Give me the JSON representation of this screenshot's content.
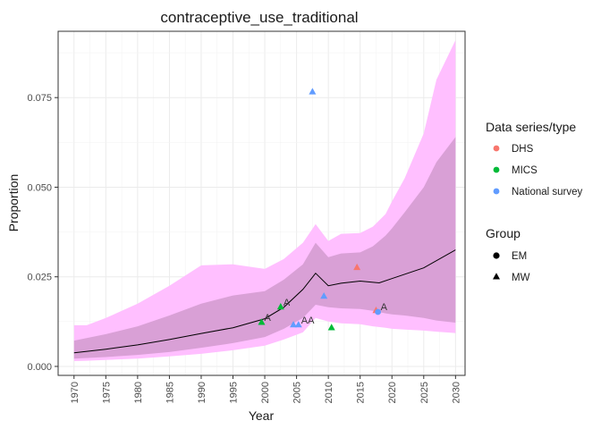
{
  "chart_data": {
    "type": "line",
    "title": "contraceptive_use_traditional",
    "xlabel": "Year",
    "ylabel": "Proportion",
    "xlim": [
      1967.5,
      2031.5
    ],
    "ylim": [
      -0.0025,
      0.0935
    ],
    "x_ticks": [
      1970,
      1975,
      1980,
      1985,
      1990,
      1995,
      2000,
      2005,
      2010,
      2015,
      2020,
      2025,
      2030
    ],
    "x_tick_labels": [
      "1970",
      "1975",
      "1980",
      "1985",
      "1990",
      "1995",
      "2000",
      "2005",
      "2010",
      "2015",
      "2020",
      "2025",
      "2030"
    ],
    "y_ticks": [
      0.0,
      0.025,
      0.05,
      0.075
    ],
    "y_tick_labels": [
      "0.000",
      "0.025",
      "0.050",
      "0.075"
    ],
    "grid": true,
    "legend_position": "right",
    "colors": {
      "outer_band": "#ffbfff",
      "inner_band": "#d9a0d6",
      "median_line": "#000000",
      "DHS": "#f8766d",
      "MICS": "#00ba38",
      "National survey": "#619cff"
    },
    "median": {
      "x": [
        1970,
        1975,
        1980,
        1985,
        1990,
        1995,
        2000,
        2003,
        2006,
        2008,
        2010,
        2012,
        2015,
        2018,
        2020,
        2025,
        2030
      ],
      "y": [
        0.0038,
        0.0048,
        0.006,
        0.0075,
        0.0092,
        0.0108,
        0.0133,
        0.0165,
        0.0215,
        0.026,
        0.0225,
        0.0232,
        0.0238,
        0.0233,
        0.0245,
        0.0275,
        0.0325
      ]
    },
    "outer_band": {
      "x": [
        1970,
        1972,
        1975,
        1980,
        1985,
        1990,
        1995,
        2000,
        2003,
        2006,
        2008,
        2010,
        2012,
        2015,
        2017,
        2019,
        2020,
        2022,
        2025,
        2027,
        2030
      ],
      "upper": [
        0.0115,
        0.0115,
        0.0135,
        0.0175,
        0.0225,
        0.0282,
        0.0285,
        0.0272,
        0.03,
        0.0345,
        0.0397,
        0.035,
        0.037,
        0.0372,
        0.039,
        0.0425,
        0.046,
        0.0525,
        0.065,
        0.08,
        0.091
      ],
      "lower": [
        0.0015,
        0.0016,
        0.0018,
        0.0022,
        0.0028,
        0.0035,
        0.0045,
        0.0058,
        0.0075,
        0.0095,
        0.0135,
        0.0125,
        0.012,
        0.0118,
        0.0112,
        0.0108,
        0.0105,
        0.0103,
        0.01,
        0.0097,
        0.0093
      ]
    },
    "inner_band": {
      "x": [
        1970,
        1975,
        1980,
        1985,
        1990,
        1995,
        2000,
        2003,
        2006,
        2008,
        2010,
        2012,
        2015,
        2017,
        2019,
        2020,
        2022,
        2025,
        2027,
        2030
      ],
      "upper": [
        0.0072,
        0.009,
        0.0112,
        0.0142,
        0.0175,
        0.0198,
        0.021,
        0.0242,
        0.0285,
        0.0345,
        0.0305,
        0.0315,
        0.0318,
        0.0335,
        0.0365,
        0.0385,
        0.043,
        0.05,
        0.057,
        0.064
      ],
      "lower": [
        0.0022,
        0.0026,
        0.0032,
        0.004,
        0.0052,
        0.0065,
        0.0082,
        0.0105,
        0.0135,
        0.0172,
        0.0165,
        0.0162,
        0.016,
        0.0155,
        0.0148,
        0.0145,
        0.0142,
        0.0135,
        0.0128,
        0.0122
      ]
    },
    "points": [
      {
        "series": "DHS",
        "group": "MW",
        "x": 2014.5,
        "y": 0.0275,
        "label": ""
      },
      {
        "series": "DHS",
        "group": "MW",
        "x": 2017.5,
        "y": 0.0155,
        "label": ""
      },
      {
        "series": "MICS",
        "group": "MW",
        "x": 1999.5,
        "y": 0.0122,
        "label": "A"
      },
      {
        "series": "MICS",
        "group": "MW",
        "x": 2002.5,
        "y": 0.0165,
        "label": "A"
      },
      {
        "series": "MICS",
        "group": "MW",
        "x": 2010.5,
        "y": 0.0107,
        "label": ""
      },
      {
        "series": "National survey",
        "group": "MW",
        "x": 2007.5,
        "y": 0.0765,
        "label": ""
      },
      {
        "series": "National survey",
        "group": "MW",
        "x": 2004.5,
        "y": 0.0115,
        "label": ""
      },
      {
        "series": "National survey",
        "group": "MW",
        "x": 2005.3,
        "y": 0.0115,
        "label": "AA"
      },
      {
        "series": "National survey",
        "group": "MW",
        "x": 2009.3,
        "y": 0.0195,
        "label": ""
      },
      {
        "series": "National survey",
        "group": "EM",
        "x": 2017.8,
        "y": 0.0152,
        "label": "A"
      }
    ],
    "legend": {
      "series_title": "Data series/type",
      "series": [
        "DHS",
        "MICS",
        "National survey"
      ],
      "group_title": "Group",
      "groups": [
        "EM",
        "MW"
      ]
    }
  }
}
